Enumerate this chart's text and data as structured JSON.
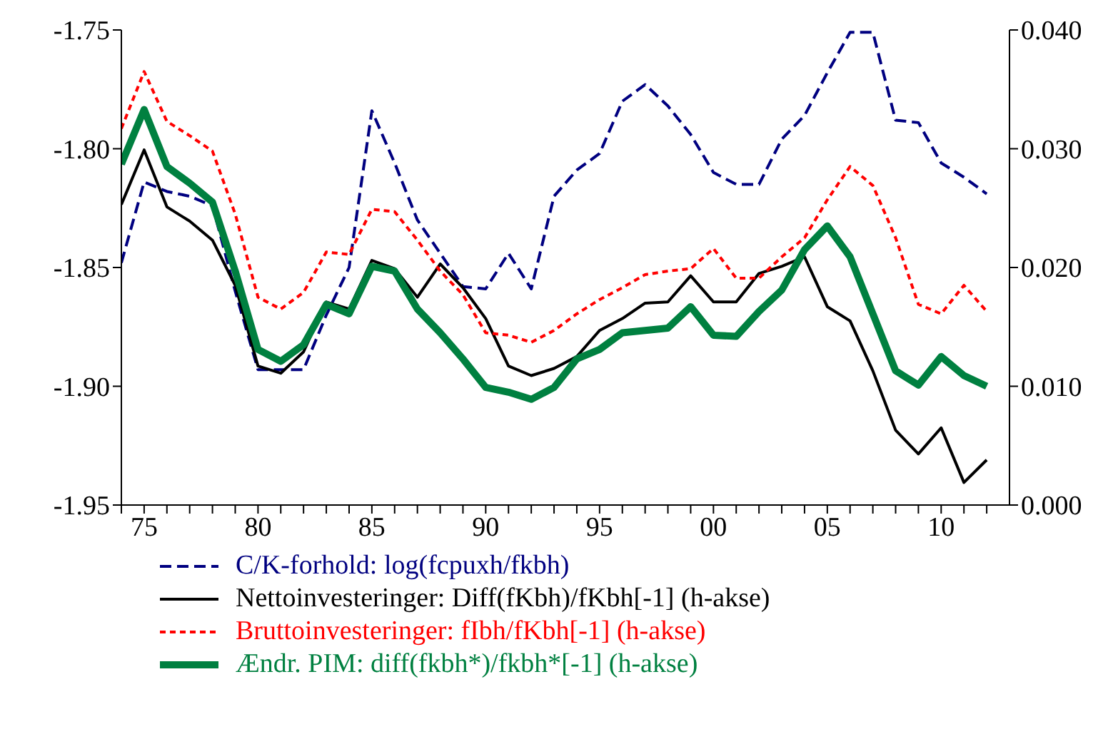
{
  "chart_data": {
    "type": "line",
    "x": [
      1974,
      1975,
      1976,
      1977,
      1978,
      1979,
      1980,
      1981,
      1982,
      1983,
      1984,
      1985,
      1986,
      1987,
      1988,
      1989,
      1990,
      1991,
      1992,
      1993,
      1994,
      1995,
      1996,
      1997,
      1998,
      1999,
      2000,
      2001,
      2002,
      2003,
      2004,
      2005,
      2006,
      2007,
      2008,
      2009,
      2010,
      2011,
      2012
    ],
    "xlim": [
      1974,
      2013
    ],
    "xticks": [
      {
        "value": 1974,
        "label": null
      },
      {
        "value": 1975,
        "label": "75"
      },
      {
        "value": 1976,
        "label": null
      },
      {
        "value": 1977,
        "label": null
      },
      {
        "value": 1978,
        "label": null
      },
      {
        "value": 1979,
        "label": null
      },
      {
        "value": 1980,
        "label": "80"
      },
      {
        "value": 1981,
        "label": null
      },
      {
        "value": 1982,
        "label": null
      },
      {
        "value": 1983,
        "label": null
      },
      {
        "value": 1984,
        "label": null
      },
      {
        "value": 1985,
        "label": "85"
      },
      {
        "value": 1986,
        "label": null
      },
      {
        "value": 1987,
        "label": null
      },
      {
        "value": 1988,
        "label": null
      },
      {
        "value": 1989,
        "label": null
      },
      {
        "value": 1990,
        "label": "90"
      },
      {
        "value": 1991,
        "label": null
      },
      {
        "value": 1992,
        "label": null
      },
      {
        "value": 1993,
        "label": null
      },
      {
        "value": 1994,
        "label": null
      },
      {
        "value": 1995,
        "label": "95"
      },
      {
        "value": 1996,
        "label": null
      },
      {
        "value": 1997,
        "label": null
      },
      {
        "value": 1998,
        "label": null
      },
      {
        "value": 1999,
        "label": null
      },
      {
        "value": 2000,
        "label": "00"
      },
      {
        "value": 2001,
        "label": null
      },
      {
        "value": 2002,
        "label": null
      },
      {
        "value": 2003,
        "label": null
      },
      {
        "value": 2004,
        "label": null
      },
      {
        "value": 2005,
        "label": "05"
      },
      {
        "value": 2006,
        "label": null
      },
      {
        "value": 2007,
        "label": null
      },
      {
        "value": 2008,
        "label": null
      },
      {
        "value": 2009,
        "label": null
      },
      {
        "value": 2010,
        "label": "10"
      },
      {
        "value": 2011,
        "label": null
      },
      {
        "value": 2012,
        "label": null
      }
    ],
    "ylim": [
      -1.95,
      -1.75
    ],
    "yticks": [
      {
        "value": -1.95,
        "label": "-1.95"
      },
      {
        "value": -1.9,
        "label": "-1.90"
      },
      {
        "value": -1.85,
        "label": "-1.85"
      },
      {
        "value": -1.8,
        "label": "-1.80"
      },
      {
        "value": -1.75,
        "label": "-1.75"
      }
    ],
    "y2lim": [
      0,
      0.04
    ],
    "y2ticks": [
      {
        "value": 0,
        "label": "0.000"
      },
      {
        "value": 0.01,
        "label": "0.010"
      },
      {
        "value": 0.02,
        "label": "0.020"
      },
      {
        "value": 0.03,
        "label": "0.030"
      },
      {
        "value": 0.04,
        "label": "0.040"
      }
    ],
    "grid": false,
    "legend": "bottom",
    "marker": "none",
    "series": [
      {
        "name": "C/K-forhold: log(fcpuxh/fkbh)",
        "color": "#000080",
        "line_style": "dashed",
        "values": [
          -1.848,
          -1.814,
          -1.818,
          -1.82,
          -1.824,
          -1.86,
          -1.893,
          -1.893,
          -1.893,
          -1.87,
          -1.85,
          -1.784,
          -1.806,
          -1.83,
          -1.844,
          -1.858,
          -1.859,
          -1.844,
          -1.859,
          -1.82,
          -1.809,
          -1.802,
          -1.78,
          -1.773,
          -1.782,
          -1.794,
          -1.81,
          -1.815,
          -1.815,
          -1.796,
          -1.786,
          -1.768,
          -1.751,
          -1.751,
          -1.788,
          -1.789,
          -1.806,
          -1.812,
          -1.819
        ]
      },
      {
        "name": "Nettoinvesteringer: Diff(fKbh)/fKbh[-1] (h-akse)",
        "color": "#000000",
        "line_style": "solid",
        "axis": "y2",
        "values": [
          0.0253,
          0.0299,
          0.0251,
          0.0239,
          0.0223,
          0.0185,
          0.0117,
          0.0111,
          0.0129,
          0.0171,
          0.0165,
          0.0206,
          0.0199,
          0.0175,
          0.0203,
          0.0183,
          0.0157,
          0.0117,
          0.0109,
          0.0115,
          0.0125,
          0.0147,
          0.0157,
          0.017,
          0.0171,
          0.0193,
          0.0171,
          0.0171,
          0.0195,
          0.0201,
          0.0209,
          0.0167,
          0.0155,
          0.0113,
          0.0063,
          0.0043,
          0.0065,
          0.0019,
          0.0038
        ]
      },
      {
        "name": "Bruttoinvesteringer: fIbh/fKbh[-1] (h-akse)",
        "color": "#ff0000",
        "line_style": "dotted",
        "axis": "y2",
        "values": [
          0.0317,
          0.0365,
          0.0323,
          0.0311,
          0.0298,
          0.0245,
          0.0175,
          0.0165,
          0.0179,
          0.0213,
          0.0211,
          0.0249,
          0.0247,
          0.0223,
          0.0197,
          0.0177,
          0.0145,
          0.0143,
          0.0137,
          0.0147,
          0.0161,
          0.0173,
          0.0183,
          0.0194,
          0.0197,
          0.0199,
          0.0216,
          0.0191,
          0.0191,
          0.0209,
          0.0225,
          0.0257,
          0.0285,
          0.0269,
          0.0225,
          0.0169,
          0.0161,
          0.0185,
          0.0163
        ]
      },
      {
        "name": "Ændr. PIM: diff(fkbh*)/fkbh*[-1] (h-akse)",
        "color": "#008040",
        "line_style": "solid",
        "axis": "y2",
        "values": [
          0.0287,
          0.0333,
          0.0285,
          0.0271,
          0.0255,
          0.0197,
          0.0131,
          0.0121,
          0.0135,
          0.0169,
          0.0161,
          0.0201,
          0.0197,
          0.0165,
          0.0145,
          0.0123,
          0.0099,
          0.0095,
          0.0089,
          0.0099,
          0.0123,
          0.0131,
          0.0145,
          0.0147,
          0.0149,
          0.0167,
          0.0143,
          0.0142,
          0.0163,
          0.0181,
          0.0215,
          0.0235,
          0.0209,
          0.0161,
          0.0113,
          0.0101,
          0.0125,
          0.0109,
          0.01
        ]
      }
    ]
  }
}
